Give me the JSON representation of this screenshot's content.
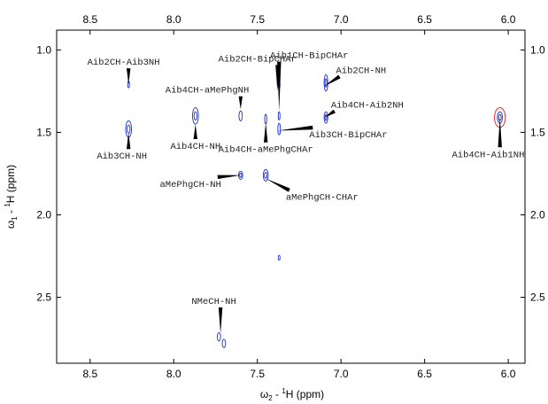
{
  "chart_data": {
    "type": "scatter",
    "xlabel": {
      "main": "ω",
      "sub": "2",
      "rest": " - ",
      "sup": "1",
      "tail": "H (ppm)"
    },
    "ylabel": {
      "main": "ω",
      "sub": "1",
      "rest": " - ",
      "sup": "1",
      "tail": "H (ppm)"
    },
    "xlim": [
      8.7,
      5.9
    ],
    "ylim": [
      0.88,
      2.9
    ],
    "x_ticks": [
      "8.5",
      "8.0",
      "7.5",
      "7.0",
      "6.5",
      "6.0"
    ],
    "x_tick_values": [
      8.5,
      8.0,
      7.5,
      7.0,
      6.5,
      6.0
    ],
    "y_ticks": [
      "1.0",
      "1.5",
      "2.0",
      "2.5"
    ],
    "y_tick_values": [
      1.0,
      1.5,
      2.0,
      2.5
    ],
    "grid": false,
    "peak_color": "#1a2fd6",
    "highlight_color": "#e03030",
    "peaks": [
      {
        "x": 8.27,
        "y": 1.48,
        "w": 0.035,
        "h": 0.1
      },
      {
        "x": 8.27,
        "y": 1.21,
        "w": 0.01,
        "h": 0.04
      },
      {
        "x": 7.87,
        "y": 1.4,
        "w": 0.035,
        "h": 0.1
      },
      {
        "x": 7.6,
        "y": 1.4,
        "w": 0.02,
        "h": 0.06
      },
      {
        "x": 7.6,
        "y": 1.76,
        "w": 0.025,
        "h": 0.05
      },
      {
        "x": 7.45,
        "y": 1.42,
        "w": 0.012,
        "h": 0.06
      },
      {
        "x": 7.45,
        "y": 1.76,
        "w": 0.03,
        "h": 0.07
      },
      {
        "x": 7.37,
        "y": 1.21,
        "w": 0.008,
        "h": 0.05
      },
      {
        "x": 7.37,
        "y": 1.4,
        "w": 0.008,
        "h": 0.05
      },
      {
        "x": 7.37,
        "y": 1.48,
        "w": 0.015,
        "h": 0.07
      },
      {
        "x": 7.37,
        "y": 2.26,
        "w": 0.005,
        "h": 0.03
      },
      {
        "x": 7.09,
        "y": 1.2,
        "w": 0.022,
        "h": 0.1
      },
      {
        "x": 7.09,
        "y": 1.41,
        "w": 0.022,
        "h": 0.07
      },
      {
        "x": 7.73,
        "y": 2.74,
        "w": 0.02,
        "h": 0.05
      },
      {
        "x": 7.7,
        "y": 2.78,
        "w": 0.02,
        "h": 0.05
      },
      {
        "x": 6.05,
        "y": 1.41,
        "w": 0.03,
        "h": 0.07
      }
    ],
    "highlight": {
      "x": 6.05,
      "y": 1.41,
      "w": 0.065,
      "h": 0.12
    },
    "annotations": [
      {
        "text": "Aib2CH-Aib3NH",
        "label_x": 8.3,
        "label_y": 1.09,
        "anchor": "middle",
        "to_x": 8.27,
        "to_y": 1.21
      },
      {
        "text": "Aib3CH-NH",
        "label_x": 8.46,
        "label_y": 1.66,
        "anchor": "start",
        "to_x": 8.27,
        "to_y": 1.5
      },
      {
        "text": "Aib4CH-aMePhgNH",
        "label_x": 7.8,
        "label_y": 1.26,
        "anchor": "middle",
        "to_x": 7.6,
        "to_y": 1.36
      },
      {
        "text": "Aib4CH-NH",
        "label_x": 7.87,
        "label_y": 1.6,
        "anchor": "middle",
        "to_x": 7.87,
        "to_y": 1.45
      },
      {
        "text": "Aib2CH-BipCHAr",
        "label_x": 7.5,
        "label_y": 1.07,
        "anchor": "middle",
        "to_x": 7.38,
        "to_y": 1.25
      },
      {
        "text": "Aib1CH-BipCHAr",
        "label_x": 7.19,
        "label_y": 1.05,
        "anchor": "middle",
        "to_x": 7.37,
        "to_y": 1.37
      },
      {
        "text": "Aib2CH-NH",
        "label_x": 7.03,
        "label_y": 1.14,
        "anchor": "start",
        "to_x": 7.1,
        "to_y": 1.22
      },
      {
        "text": "Aib4CH-Aib2NH",
        "label_x": 7.06,
        "label_y": 1.35,
        "anchor": "start",
        "to_x": 7.1,
        "to_y": 1.41
      },
      {
        "text": "Aib3CH-BipCHAr",
        "label_x": 7.19,
        "label_y": 1.53,
        "anchor": "start",
        "to_x": 7.38,
        "to_y": 1.49
      },
      {
        "text": "Aib4CH-aMePhgCHAr",
        "label_x": 7.45,
        "label_y": 1.62,
        "anchor": "middle",
        "to_x": 7.45,
        "to_y": 1.44
      },
      {
        "text": "aMePhgCH-NH",
        "label_x": 7.9,
        "label_y": 1.83,
        "anchor": "middle",
        "to_x": 7.6,
        "to_y": 1.76
      },
      {
        "text": "aMePhgCH-CHAr",
        "label_x": 7.33,
        "label_y": 1.91,
        "anchor": "start",
        "to_x": 7.45,
        "to_y": 1.78
      },
      {
        "text": "NMeCH-NH",
        "label_x": 7.76,
        "label_y": 2.54,
        "anchor": "middle",
        "to_x": 7.72,
        "to_y": 2.72
      },
      {
        "text": "Aib4CH-Aib1NH",
        "label_x": 6.12,
        "label_y": 1.65,
        "anchor": "middle",
        "to_x": 6.05,
        "to_y": 1.41
      }
    ]
  }
}
